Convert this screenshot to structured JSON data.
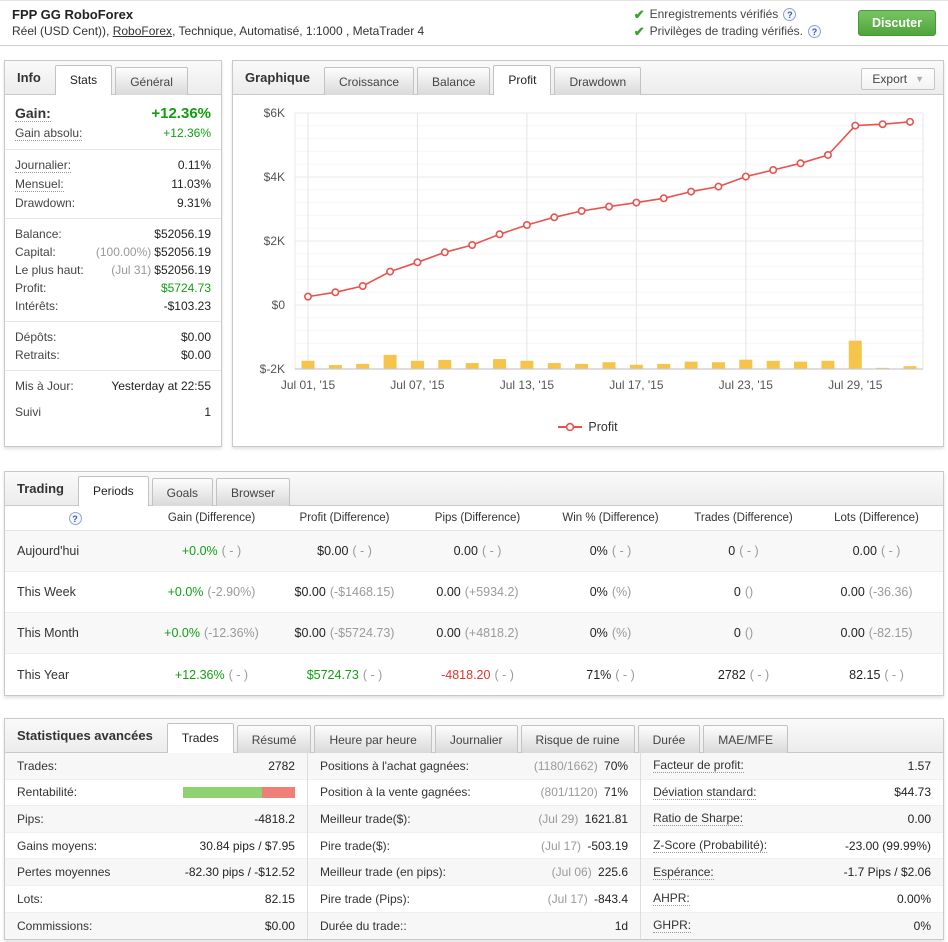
{
  "topbar": {
    "title": "FPP GG RoboForex",
    "subtitle_prefix": "Réel (USD Cent)), ",
    "subtitle_link": "RoboForex",
    "subtitle_suffix": ", Technique, Automatisé, 1:1000 , MetaTrader 4",
    "verified1": "Enregistrements vérifiés",
    "verified2": "Privilèges de trading vérifiés.",
    "chat_button": "Discuter"
  },
  "icons": {
    "check": "✔",
    "help": "?",
    "dropdown": "▼"
  },
  "info_panel": {
    "title": "Info",
    "tabs": [
      {
        "label": "Stats",
        "active": true
      },
      {
        "label": "Général",
        "active": false
      }
    ],
    "groups": [
      {
        "rows": [
          {
            "label": "Gain:",
            "value": "+12.36%",
            "style": "green",
            "big": true,
            "dotted": true
          },
          {
            "label": "Gain absolu:",
            "value": "+12.36%",
            "style": "green",
            "dotted": true
          }
        ]
      },
      {
        "rows": [
          {
            "label": "Journalier:",
            "value": "0.11%",
            "dotted": true
          },
          {
            "label": "Mensuel:",
            "value": "11.03%",
            "dotted": true
          },
          {
            "label": "Drawdown:",
            "value": "9.31%"
          }
        ]
      },
      {
        "rows": [
          {
            "label": "Balance:",
            "value": "$52056.19"
          },
          {
            "label": "Capital:",
            "prefix": "(100.00%)",
            "value": "$52056.19"
          },
          {
            "label": "Le plus haut:",
            "prefix": "(Jul 31)",
            "value": "$52056.19"
          },
          {
            "label": "Profit:",
            "value": "$5724.73",
            "style": "green"
          },
          {
            "label": "Intérêts:",
            "value": "-$103.23"
          }
        ]
      },
      {
        "rows": [
          {
            "label": "Dépôts:",
            "value": "$0.00"
          },
          {
            "label": "Retraits:",
            "value": "$0.00"
          }
        ]
      },
      {
        "rows": [
          {
            "label": "Mis à Jour:",
            "value": "Yesterday at 22:55"
          },
          {
            "label": "Suivi",
            "value": "1",
            "spaced": true
          }
        ]
      }
    ]
  },
  "chart_panel": {
    "title": "Graphique",
    "tabs": [
      {
        "label": "Croissance"
      },
      {
        "label": "Balance"
      },
      {
        "label": "Profit",
        "active": true
      },
      {
        "label": "Drawdown"
      }
    ],
    "export_label": "Export",
    "legend": "Profit"
  },
  "chart_data": {
    "type": "line",
    "title": "",
    "x": [
      "Jul 01",
      "Jul 02",
      "Jul 03",
      "Jul 06",
      "Jul 07",
      "Jul 08",
      "Jul 09",
      "Jul 10",
      "Jul 13",
      "Jul 14",
      "Jul 15",
      "Jul 16",
      "Jul 17",
      "Jul 20",
      "Jul 21",
      "Jul 22",
      "Jul 23",
      "Jul 24",
      "Jul 27",
      "Jul 28",
      "Jul 29",
      "Jul 30",
      "Jul 31"
    ],
    "series": [
      {
        "name": "Profit",
        "type": "line",
        "color": "#e8534e",
        "values": [
          262,
          397,
          594,
          1044,
          1334,
          1647,
          1875,
          2209,
          2500,
          2741,
          2938,
          3075,
          3200,
          3334,
          3544,
          3700,
          4013,
          4219,
          4428,
          4688,
          5606,
          5650,
          5724
        ]
      },
      {
        "name": "Volume",
        "type": "bar",
        "color": "#f6c44a",
        "values_pct_of_max": [
          29,
          14,
          18,
          50,
          29,
          32,
          21,
          35,
          29,
          21,
          18,
          24,
          15,
          18,
          26,
          24,
          33,
          29,
          26,
          29,
          100,
          4,
          10
        ]
      }
    ],
    "ylim": [
      -2000,
      6000
    ],
    "yticks": [
      {
        "v": 6000,
        "label": "$6K"
      },
      {
        "v": 4000,
        "label": "$4K"
      },
      {
        "v": 2000,
        "label": "$2K"
      },
      {
        "v": 0,
        "label": "$0"
      },
      {
        "v": -2000,
        "label": "$-2K"
      }
    ],
    "xticks": [
      {
        "i": 0,
        "label": "Jul 01, '15"
      },
      {
        "i": 4,
        "label": "Jul 07, '15"
      },
      {
        "i": 8,
        "label": "Jul 13, '15"
      },
      {
        "i": 12,
        "label": "Jul 17, '15"
      },
      {
        "i": 16,
        "label": "Jul 23, '15"
      },
      {
        "i": 20,
        "label": "Jul 29, '15"
      }
    ],
    "grid": true,
    "legend_position": "bottom"
  },
  "trading_panel": {
    "title": "Trading",
    "tabs": [
      {
        "label": "Periods",
        "active": true
      },
      {
        "label": "Goals"
      },
      {
        "label": "Browser"
      }
    ],
    "columns": [
      "Gain (Difference)",
      "Profit (Difference)",
      "Pips (Difference)",
      "Win % (Difference)",
      "Trades (Difference)",
      "Lots (Difference)"
    ],
    "rows": [
      {
        "label": "Aujourd'hui",
        "cells": [
          {
            "v": "+0.0%",
            "c": "green",
            "d": "( - )"
          },
          {
            "v": "$0.00",
            "d": "( - )"
          },
          {
            "v": "0.00",
            "d": "( - )"
          },
          {
            "v": "0%",
            "d": "( - )"
          },
          {
            "v": "0",
            "d": "( - )"
          },
          {
            "v": "0.00",
            "d": "( - )"
          }
        ]
      },
      {
        "label": "This Week",
        "cells": [
          {
            "v": "+0.0%",
            "c": "green",
            "d": "(-2.90%)"
          },
          {
            "v": "$0.00",
            "d": "(-$1468.15)"
          },
          {
            "v": "0.00",
            "d": "(+5934.2)"
          },
          {
            "v": "0%",
            "d": "(%)"
          },
          {
            "v": "0",
            "d": "()"
          },
          {
            "v": "0.00",
            "d": "(-36.36)"
          }
        ]
      },
      {
        "label": "This Month",
        "cells": [
          {
            "v": "+0.0%",
            "c": "green",
            "d": "(-12.36%)"
          },
          {
            "v": "$0.00",
            "d": "(-$5724.73)"
          },
          {
            "v": "0.00",
            "d": "(+4818.2)"
          },
          {
            "v": "0%",
            "d": "(%)"
          },
          {
            "v": "0",
            "d": "()"
          },
          {
            "v": "0.00",
            "d": "(-82.15)"
          }
        ]
      },
      {
        "label": "This Year",
        "cells": [
          {
            "v": "+12.36%",
            "c": "green",
            "d": "( - )"
          },
          {
            "v": "$5724.73",
            "c": "green",
            "d": "( - )"
          },
          {
            "v": "-4818.20",
            "c": "red",
            "d": "( - )"
          },
          {
            "v": "71%",
            "d": "( - )"
          },
          {
            "v": "2782",
            "d": "( - )"
          },
          {
            "v": "82.15",
            "d": "( - )"
          }
        ]
      }
    ]
  },
  "stats_panel": {
    "title": "Statistiques avancées",
    "tabs": [
      {
        "label": "Trades",
        "active": true
      },
      {
        "label": "Résumé"
      },
      {
        "label": "Heure par heure"
      },
      {
        "label": "Journalier"
      },
      {
        "label": "Risque de ruine"
      },
      {
        "label": "Durée"
      },
      {
        "label": "MAE/MFE"
      }
    ],
    "columns": [
      {
        "rows": [
          {
            "label": "Trades:",
            "value": "2782"
          },
          {
            "label": "Rentabilité:",
            "bar": {
              "green_pct": 71,
              "red_pct": 29
            }
          },
          {
            "label": "Pips:",
            "value": "-4818.2"
          },
          {
            "label": "Gains moyens:",
            "value": "30.84 pips / $7.95"
          },
          {
            "label": "Pertes moyennes",
            "value": "-82.30 pips / -$12.52"
          },
          {
            "label": "Lots:",
            "value": "82.15"
          },
          {
            "label": "Commissions:",
            "value": "$0.00"
          }
        ]
      },
      {
        "rows": [
          {
            "label": "Positions à l'achat gagnées:",
            "prefix": "(1180/1662)",
            "value": "70%"
          },
          {
            "label": "Position à la vente gagnées:",
            "prefix": "(801/1120)",
            "value": "71%"
          },
          {
            "label": "Meilleur trade($):",
            "prefix": "(Jul 29)",
            "value": "1621.81"
          },
          {
            "label": "Pire trade($):",
            "prefix": "(Jul 17)",
            "value": "-503.19"
          },
          {
            "label": "Meilleur trade (en pips):",
            "prefix": "(Jul 06)",
            "value": "225.6"
          },
          {
            "label": "Pire trade (Pips):",
            "prefix": "(Jul 17)",
            "value": "-843.4"
          },
          {
            "label": "Durée du trade::",
            "value": "1d"
          }
        ]
      },
      {
        "rows": [
          {
            "label": "Facteur de profit:",
            "value": "1.57",
            "dotted": true
          },
          {
            "label": "Déviation standard:",
            "value": "$44.73",
            "dotted": true
          },
          {
            "label": "Ratio de Sharpe:",
            "value": "0.00",
            "dotted": true
          },
          {
            "label": "Z-Score (Probabilité):",
            "value": "-23.00 (99.99%)",
            "dotted": true
          },
          {
            "label": "Espérance:",
            "value": "-1.7 Pips / $2.06",
            "dotted": true
          },
          {
            "label": "AHPR:",
            "value": "0.00%",
            "dotted": true
          },
          {
            "label": "GHPR:",
            "value": "0%",
            "dotted": true
          }
        ]
      }
    ]
  },
  "colors": {
    "value_green": "#10a010",
    "value_red": "#e0362c",
    "line_red": "#e8534e",
    "bar_yellow": "#f6c44a",
    "muted_gray": "#9a9a9a"
  }
}
